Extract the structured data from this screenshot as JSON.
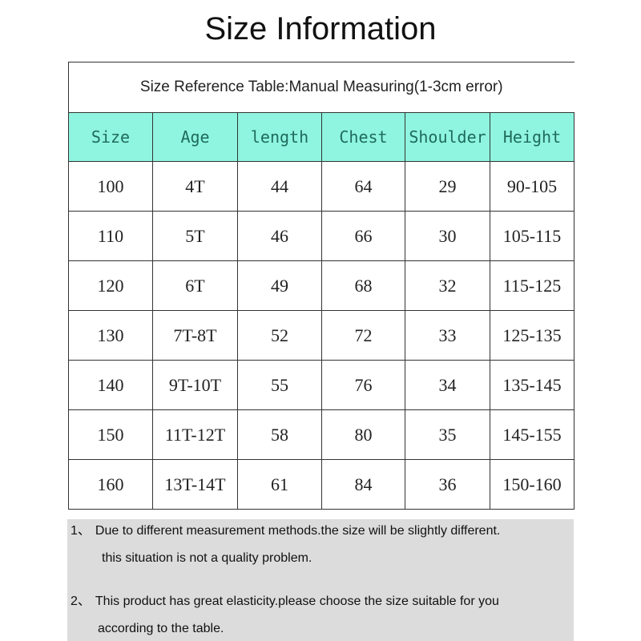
{
  "title": "Size Information",
  "table": {
    "caption": "Size Reference Table:Manual Measuring(1-3cm error)",
    "header_color": "#8ff5e0",
    "columns": [
      "Size",
      "Age",
      "length",
      "Chest",
      "Shoulder",
      "Height"
    ],
    "rows": [
      [
        "100",
        "4T",
        "44",
        "64",
        "29",
        "90-105"
      ],
      [
        "110",
        "5T",
        "46",
        "66",
        "30",
        "105-115"
      ],
      [
        "120",
        "6T",
        "49",
        "68",
        "32",
        "115-125"
      ],
      [
        "130",
        "7T-8T",
        "52",
        "72",
        "33",
        "125-135"
      ],
      [
        "140",
        "9T-10T",
        "55",
        "76",
        "34",
        "135-145"
      ],
      [
        "150",
        "11T-12T",
        "58",
        "80",
        "35",
        "145-155"
      ],
      [
        "160",
        "13T-14T",
        "61",
        "84",
        "36",
        "150-160"
      ]
    ]
  },
  "notes": [
    {
      "num": "1、",
      "line1": "Due to different measurement methods.the size will be slightly different.",
      "line2": "this situation is not a quality problem."
    },
    {
      "num": "2、",
      "line1": "This product has great elasticity.please choose the size suitable for you",
      "line2": "according to the table."
    }
  ]
}
